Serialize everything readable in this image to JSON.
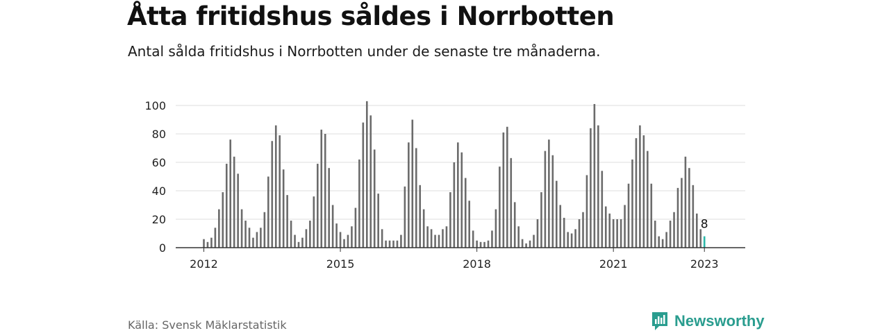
{
  "title": "Åtta fritidshus såldes i Norrbotten",
  "subtitle": "Antal sålda fritidshus i Norrbotten under de senaste tre månaderna.",
  "source": "Källa: Svensk Mäklarstatistik",
  "brand": {
    "name": "Newsworthy",
    "icon": "newsworthy-logo-icon",
    "color": "#2a9d8f"
  },
  "colors": {
    "bar": "#6b6b6b",
    "highlight": "#2ab7a9",
    "grid": "#dddddd",
    "axis": "#333333"
  },
  "chart_data": {
    "type": "bar",
    "title": "Antal sålda fritidshus i Norrbotten",
    "xlabel": "",
    "ylabel": "",
    "ylim": [
      0,
      100
    ],
    "yticks": [
      0,
      20,
      40,
      60,
      80,
      100
    ],
    "x_start": "2012-01",
    "x_tick_labels": [
      {
        "label": "2012",
        "index": 0
      },
      {
        "label": "2015",
        "index": 36
      },
      {
        "label": "2018",
        "index": 72
      },
      {
        "label": "2021",
        "index": 108
      },
      {
        "label": "2023",
        "index": 132
      }
    ],
    "values": [
      6,
      4,
      7,
      14,
      27,
      39,
      59,
      76,
      64,
      52,
      27,
      19,
      14,
      7,
      11,
      14,
      25,
      50,
      75,
      86,
      79,
      55,
      37,
      19,
      9,
      4,
      7,
      13,
      19,
      36,
      59,
      83,
      80,
      56,
      30,
      17,
      11,
      6,
      9,
      15,
      28,
      62,
      88,
      103,
      93,
      69,
      38,
      13,
      5,
      5,
      5,
      5,
      9,
      43,
      74,
      90,
      70,
      44,
      27,
      15,
      13,
      9,
      9,
      13,
      15,
      39,
      60,
      74,
      67,
      49,
      33,
      12,
      5,
      4,
      4,
      5,
      12,
      27,
      57,
      81,
      85,
      63,
      32,
      15,
      6,
      3,
      5,
      9,
      20,
      39,
      68,
      76,
      65,
      47,
      30,
      21,
      11,
      10,
      13,
      20,
      25,
      51,
      84,
      101,
      86,
      54,
      29,
      24,
      20,
      20,
      20,
      30,
      45,
      62,
      77,
      86,
      79,
      68,
      45,
      19,
      8,
      6,
      11,
      19,
      25,
      42,
      49,
      64,
      56,
      44,
      24,
      13,
      8
    ],
    "highlight": {
      "index": 132,
      "label": "8"
    }
  }
}
